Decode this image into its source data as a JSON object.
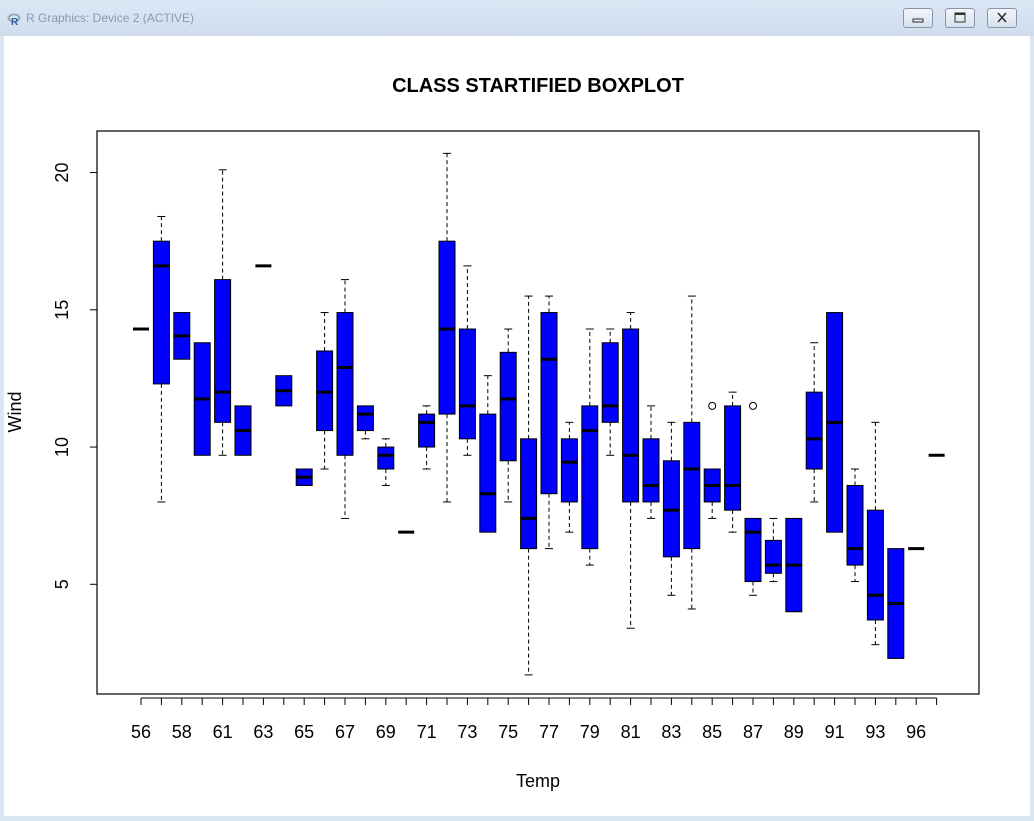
{
  "window": {
    "title": "R Graphics: Device 2 (ACTIVE)",
    "icon": "r-logo-icon",
    "controls": [
      "minimize-icon",
      "restore-icon",
      "close-icon"
    ]
  },
  "colors": {
    "box_fill": "#0000ff",
    "stroke": "#000000",
    "background": "#ffffff"
  },
  "chart_data": {
    "type": "boxplot",
    "title": "CLASS STARTIFIED BOXPLOT",
    "xlabel": "Temp",
    "ylabel": "Wind",
    "ylim": [
      1,
      22
    ],
    "yticks": [
      5,
      10,
      15,
      20
    ],
    "grid": false,
    "categories": [
      "56",
      "57",
      "58",
      "59",
      "61",
      "62",
      "63",
      "64",
      "65",
      "66",
      "67",
      "68",
      "69",
      "70",
      "71",
      "72",
      "73",
      "74",
      "75",
      "76",
      "77",
      "78",
      "79",
      "80",
      "81",
      "82",
      "83",
      "84",
      "85",
      "86",
      "87",
      "88",
      "89",
      "90",
      "91",
      "92",
      "93",
      "94",
      "96",
      "97"
    ],
    "tick_labels_shown": [
      "56",
      "58",
      "61",
      "63",
      "65",
      "67",
      "69",
      "71",
      "73",
      "75",
      "77",
      "79",
      "81",
      "83",
      "85",
      "87",
      "89",
      "91",
      "93",
      "96"
    ],
    "boxes": [
      {
        "min": 14.3,
        "q1": 14.3,
        "median": 14.3,
        "q3": 14.3,
        "max": 14.3
      },
      {
        "min": 8.0,
        "q1": 12.3,
        "median": 16.6,
        "q3": 17.5,
        "max": 18.4
      },
      {
        "min": 13.2,
        "q1": 13.2,
        "median": 14.05,
        "q3": 14.9,
        "max": 14.9
      },
      {
        "min": 9.7,
        "q1": 9.7,
        "median": 11.75,
        "q3": 13.8,
        "max": 13.8
      },
      {
        "min": 9.7,
        "q1": 10.9,
        "median": 12.0,
        "q3": 16.1,
        "max": 20.1
      },
      {
        "min": 9.7,
        "q1": 9.7,
        "median": 10.6,
        "q3": 11.5,
        "max": 11.5
      },
      {
        "min": 16.6,
        "q1": 16.6,
        "median": 16.6,
        "q3": 16.6,
        "max": 16.6
      },
      {
        "min": 11.5,
        "q1": 11.5,
        "median": 12.05,
        "q3": 12.6,
        "max": 12.6
      },
      {
        "min": 8.6,
        "q1": 8.6,
        "median": 8.9,
        "q3": 9.2,
        "max": 9.2
      },
      {
        "min": 9.2,
        "q1": 10.6,
        "median": 12.0,
        "q3": 13.5,
        "max": 14.9
      },
      {
        "min": 7.4,
        "q1": 9.7,
        "median": 12.9,
        "q3": 14.9,
        "max": 16.1
      },
      {
        "min": 10.3,
        "q1": 10.6,
        "median": 11.2,
        "q3": 11.5,
        "max": 11.5
      },
      {
        "min": 8.6,
        "q1": 9.2,
        "median": 9.7,
        "q3": 10.0,
        "max": 10.3
      },
      {
        "min": 6.9,
        "q1": 6.9,
        "median": 6.9,
        "q3": 6.9,
        "max": 6.9
      },
      {
        "min": 9.2,
        "q1": 10.0,
        "median": 10.9,
        "q3": 11.2,
        "max": 11.5
      },
      {
        "min": 8.0,
        "q1": 11.2,
        "median": 14.3,
        "q3": 17.5,
        "max": 20.7
      },
      {
        "min": 9.7,
        "q1": 10.3,
        "median": 11.5,
        "q3": 14.3,
        "max": 16.6
      },
      {
        "min": 6.9,
        "q1": 6.9,
        "median": 8.3,
        "q3": 11.2,
        "max": 12.6
      },
      {
        "min": 8.0,
        "q1": 9.5,
        "median": 11.75,
        "q3": 13.45,
        "max": 14.3
      },
      {
        "min": 1.7,
        "q1": 6.3,
        "median": 7.4,
        "q3": 10.3,
        "max": 15.5
      },
      {
        "min": 6.3,
        "q1": 8.3,
        "median": 13.2,
        "q3": 14.9,
        "max": 15.5
      },
      {
        "min": 6.9,
        "q1": 8.0,
        "median": 9.45,
        "q3": 10.3,
        "max": 10.9
      },
      {
        "min": 5.7,
        "q1": 6.3,
        "median": 10.6,
        "q3": 11.5,
        "max": 14.3
      },
      {
        "min": 9.7,
        "q1": 10.9,
        "median": 11.5,
        "q3": 13.8,
        "max": 14.3
      },
      {
        "min": 3.4,
        "q1": 8.0,
        "median": 9.7,
        "q3": 14.3,
        "max": 14.9
      },
      {
        "min": 7.4,
        "q1": 8.0,
        "median": 8.6,
        "q3": 10.3,
        "max": 11.5
      },
      {
        "min": 4.6,
        "q1": 6.0,
        "median": 7.7,
        "q3": 9.5,
        "max": 10.9
      },
      {
        "min": 4.1,
        "q1": 6.3,
        "median": 9.2,
        "q3": 10.9,
        "max": 15.5
      },
      {
        "min": 7.4,
        "q1": 8.0,
        "median": 8.6,
        "q3": 9.2,
        "max": 9.2,
        "outliers": [
          11.5
        ]
      },
      {
        "min": 6.9,
        "q1": 7.7,
        "median": 8.6,
        "q3": 11.5,
        "max": 12.0
      },
      {
        "min": 4.6,
        "q1": 5.1,
        "median": 6.9,
        "q3": 7.4,
        "max": 7.4,
        "outliers": [
          11.5
        ]
      },
      {
        "min": 5.1,
        "q1": 5.4,
        "median": 5.7,
        "q3": 6.6,
        "max": 7.4
      },
      {
        "min": 4.0,
        "q1": 4.0,
        "median": 5.7,
        "q3": 7.4,
        "max": 7.4
      },
      {
        "min": 8.0,
        "q1": 9.2,
        "median": 10.3,
        "q3": 12.0,
        "max": 13.8
      },
      {
        "min": 6.9,
        "q1": 6.9,
        "median": 10.9,
        "q3": 14.9,
        "max": 14.9
      },
      {
        "min": 5.1,
        "q1": 5.7,
        "median": 6.3,
        "q3": 8.6,
        "max": 9.2
      },
      {
        "min": 2.8,
        "q1": 3.7,
        "median": 4.6,
        "q3": 7.7,
        "max": 10.9
      },
      {
        "min": 2.3,
        "q1": 2.3,
        "median": 4.3,
        "q3": 6.3,
        "max": 6.3
      },
      {
        "min": 6.3,
        "q1": 6.3,
        "median": 6.3,
        "q3": 6.3,
        "max": 6.3
      },
      {
        "min": 9.7,
        "q1": 9.7,
        "median": 9.7,
        "q3": 9.7,
        "max": 9.7
      }
    ]
  }
}
